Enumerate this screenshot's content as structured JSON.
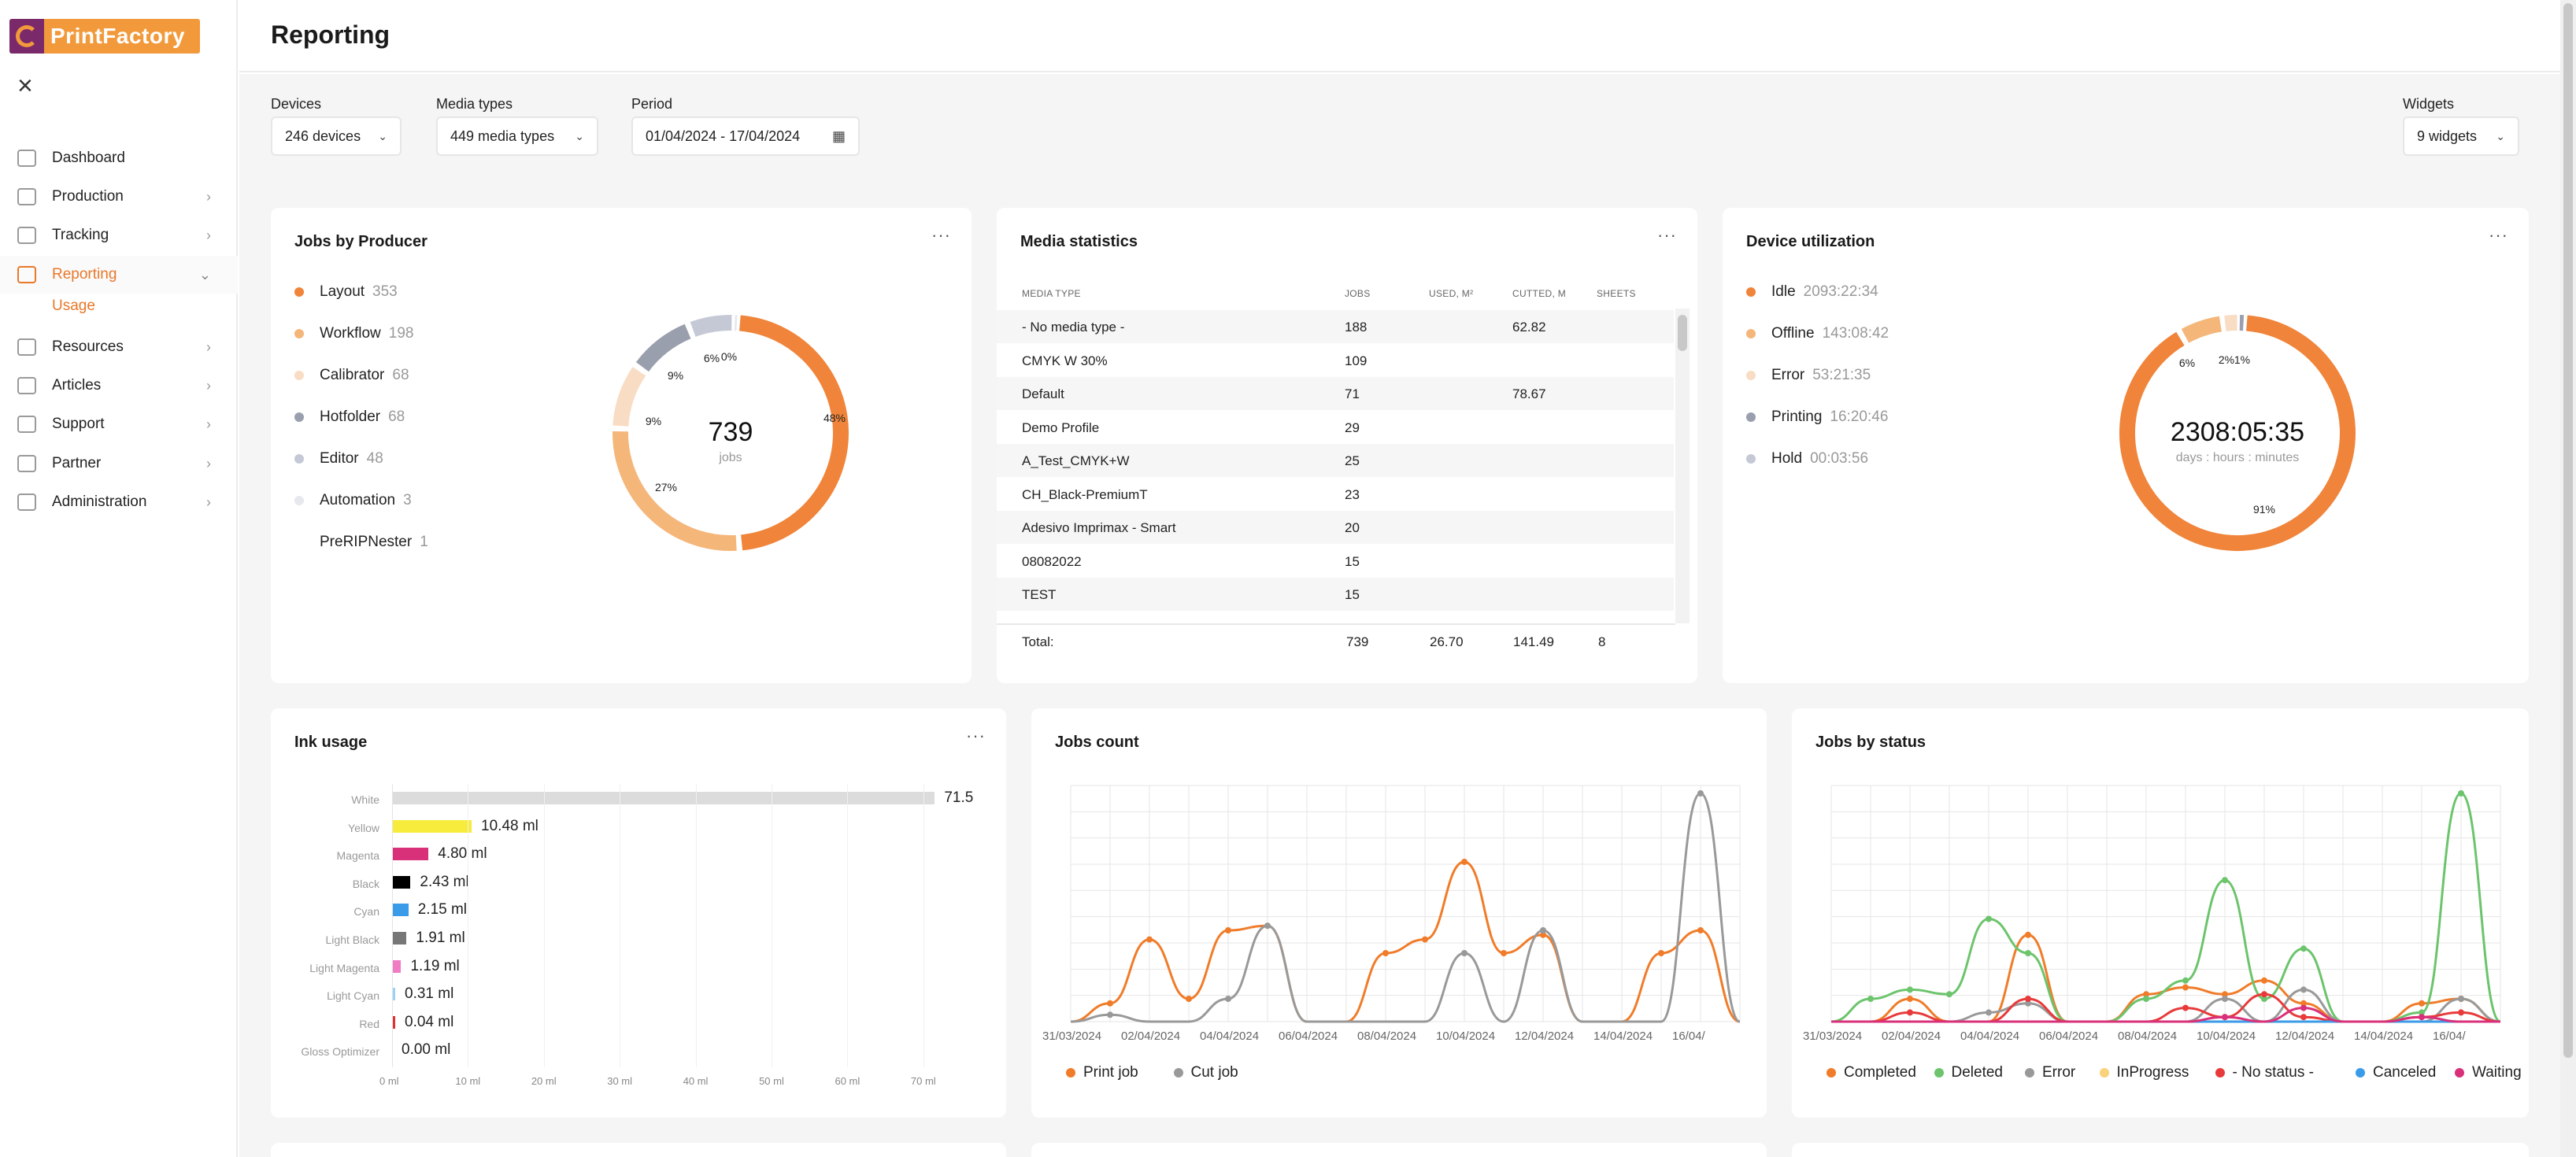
{
  "sidebar": {
    "logo_text": "PrintFactory",
    "items": [
      {
        "label": "Dashboard",
        "icon": "dashboard-icon",
        "has_chevron": false
      },
      {
        "label": "Production",
        "icon": "production-icon",
        "has_chevron": true
      },
      {
        "label": "Tracking",
        "icon": "tracking-icon",
        "has_chevron": true
      },
      {
        "label": "Reporting",
        "icon": "reporting-icon",
        "has_chevron": true,
        "active": true
      },
      {
        "label": "Resources",
        "icon": "resources-icon",
        "has_chevron": true
      },
      {
        "label": "Articles",
        "icon": "articles-icon",
        "has_chevron": true
      },
      {
        "label": "Support",
        "icon": "support-icon",
        "has_chevron": true
      },
      {
        "label": "Partner",
        "icon": "partner-icon",
        "has_chevron": true
      },
      {
        "label": "Administration",
        "icon": "administration-icon",
        "has_chevron": true
      }
    ],
    "sub_item": "Usage"
  },
  "header": {
    "title": "Reporting"
  },
  "filters": {
    "devices_label": "Devices",
    "devices_value": "246 devices",
    "media_label": "Media types",
    "media_value": "449 media types",
    "period_label": "Period",
    "period_value": "01/04/2024 - 17/04/2024",
    "widgets_label": "Widgets",
    "widgets_value": "9 widgets"
  },
  "jobs_by_producer": {
    "title": "Jobs by Producer",
    "menu": "···",
    "total": "739",
    "total_unit": "jobs",
    "items": [
      {
        "name": "Layout",
        "value": "353",
        "color": "#f0843a"
      },
      {
        "name": "Workflow",
        "value": "198",
        "color": "#f5b67a"
      },
      {
        "name": "Calibrator",
        "value": "68",
        "color": "#f9dcc4"
      },
      {
        "name": "Hotfolder",
        "value": "68",
        "color": "#9a9fae"
      },
      {
        "name": "Editor",
        "value": "48",
        "color": "#c5c9d6"
      },
      {
        "name": "Automation",
        "value": "3",
        "color": "#e6e8ee"
      },
      {
        "name": "PreRIPNester",
        "value": "1",
        "color": "#ffffff"
      }
    ],
    "pct_labels": [
      "48%",
      "27%",
      "9%",
      "9%",
      "6%",
      "0%"
    ]
  },
  "media_statistics": {
    "title": "Media statistics",
    "menu": "···",
    "columns": [
      "MEDIA TYPE",
      "JOBS",
      "USED, M²",
      "CUTTED, M",
      "SHEETS"
    ],
    "rows": [
      {
        "type": "- No media type -",
        "jobs": "188",
        "used": "",
        "cutted": "62.82",
        "sheets": ""
      },
      {
        "type": "CMYK W 30%",
        "jobs": "109",
        "used": "",
        "cutted": "",
        "sheets": ""
      },
      {
        "type": "Default",
        "jobs": "71",
        "used": "",
        "cutted": "78.67",
        "sheets": ""
      },
      {
        "type": "Demo Profile",
        "jobs": "29",
        "used": "",
        "cutted": "",
        "sheets": ""
      },
      {
        "type": "A_Test_CMYK+W",
        "jobs": "25",
        "used": "",
        "cutted": "",
        "sheets": ""
      },
      {
        "type": "CH_Black-PremiumT",
        "jobs": "23",
        "used": "",
        "cutted": "",
        "sheets": ""
      },
      {
        "type": "Adesivo Imprimax - Smart",
        "jobs": "20",
        "used": "",
        "cutted": "",
        "sheets": ""
      },
      {
        "type": "08082022",
        "jobs": "15",
        "used": "",
        "cutted": "",
        "sheets": ""
      },
      {
        "type": "TEST",
        "jobs": "15",
        "used": "",
        "cutted": "",
        "sheets": ""
      }
    ],
    "total": {
      "label": "Total:",
      "jobs": "739",
      "used": "26.70",
      "cutted": "141.49",
      "sheets": "8"
    }
  },
  "device_utilization": {
    "title": "Device utilization",
    "menu": "···",
    "total": "2308:05:35",
    "total_unit": "days : hours : minutes",
    "items": [
      {
        "name": "Idle",
        "value": "2093:22:34",
        "color": "#f0843a"
      },
      {
        "name": "Offline",
        "value": "143:08:42",
        "color": "#f5b67a"
      },
      {
        "name": "Error",
        "value": "53:21:35",
        "color": "#f9dcc4"
      },
      {
        "name": "Printing",
        "value": "16:20:46",
        "color": "#9a9fae"
      },
      {
        "name": "Hold",
        "value": "00:03:56",
        "color": "#c5c9d6"
      }
    ],
    "pct_labels": [
      "91%",
      "6%",
      "2%",
      "1%"
    ]
  },
  "ink_usage": {
    "title": "Ink usage",
    "menu": "···",
    "items": [
      {
        "name": "White",
        "value": 71.5,
        "label": "71.5",
        "color": "#dcdcdc"
      },
      {
        "name": "Yellow",
        "value": 10.48,
        "label": "10.48 ml",
        "color": "#f7ec3c"
      },
      {
        "name": "Magenta",
        "value": 4.8,
        "label": "4.80 ml",
        "color": "#d9307a"
      },
      {
        "name": "Black",
        "value": 2.43,
        "label": "2.43 ml",
        "color": "#000000"
      },
      {
        "name": "Cyan",
        "value": 2.15,
        "label": "2.15 ml",
        "color": "#3a9be8"
      },
      {
        "name": "Light Black",
        "value": 1.91,
        "label": "1.91 ml",
        "color": "#777777"
      },
      {
        "name": "Light Magenta",
        "value": 1.19,
        "label": "1.19 ml",
        "color": "#f07cc4"
      },
      {
        "name": "Light Cyan",
        "value": 0.31,
        "label": "0.31 ml",
        "color": "#9bd3f5"
      },
      {
        "name": "Red",
        "value": 0.04,
        "label": "0.04 ml",
        "color": "#e03030"
      },
      {
        "name": "Gloss Optimizer",
        "value": 0.0,
        "label": "0.00 ml",
        "color": "#cccccc"
      }
    ],
    "x_ticks": [
      "0 ml",
      "10 ml",
      "20 ml",
      "30 ml",
      "40 ml",
      "50 ml",
      "60 ml",
      "70 ml"
    ]
  },
  "jobs_count": {
    "title": "Jobs count",
    "x_ticks": [
      "31/03/2024",
      "02/04/2024",
      "04/04/2024",
      "06/04/2024",
      "08/04/2024",
      "10/04/2024",
      "12/04/2024",
      "14/04/2024",
      "16/04/"
    ],
    "series": [
      {
        "name": "Print job",
        "color": "#f07c2a"
      },
      {
        "name": "Cut job",
        "color": "#999999"
      }
    ]
  },
  "jobs_by_status": {
    "title": "Jobs by status",
    "x_ticks": [
      "31/03/2024",
      "02/04/2024",
      "04/04/2024",
      "06/04/2024",
      "08/04/2024",
      "10/04/2024",
      "12/04/2024",
      "14/04/2024",
      "16/04/"
    ],
    "series": [
      {
        "name": "Completed",
        "color": "#f07c2a"
      },
      {
        "name": "Deleted",
        "color": "#6cc46c"
      },
      {
        "name": "Error",
        "color": "#999999"
      },
      {
        "name": "InProgress",
        "color": "#f9d27a"
      },
      {
        "name": "- No status -",
        "color": "#e83a3a"
      },
      {
        "name": "Canceled",
        "color": "#3a9be8"
      },
      {
        "name": "Waiting",
        "color": "#d9307a"
      }
    ]
  },
  "chart_data": [
    {
      "type": "line",
      "title": "Jobs count",
      "x": [
        "31/03/2024",
        "01/04/2024",
        "02/04/2024",
        "03/04/2024",
        "04/04/2024",
        "05/04/2024",
        "06/04/2024",
        "07/04/2024",
        "08/04/2024",
        "09/04/2024",
        "10/04/2024",
        "11/04/2024",
        "12/04/2024",
        "13/04/2024",
        "14/04/2024",
        "15/04/2024",
        "16/04/2024",
        "17/04/2024"
      ],
      "series": [
        {
          "name": "Print job",
          "values": [
            0,
            8,
            36,
            10,
            40,
            42,
            0,
            0,
            30,
            36,
            70,
            30,
            38,
            0,
            0,
            30,
            40,
            0
          ]
        },
        {
          "name": "Cut job",
          "values": [
            0,
            3,
            0,
            0,
            10,
            42,
            0,
            0,
            0,
            0,
            30,
            0,
            40,
            0,
            0,
            0,
            100,
            0
          ]
        }
      ]
    },
    {
      "type": "line",
      "title": "Jobs by status",
      "x": [
        "31/03/2024",
        "01/04/2024",
        "02/04/2024",
        "03/04/2024",
        "04/04/2024",
        "05/04/2024",
        "06/04/2024",
        "07/04/2024",
        "08/04/2024",
        "09/04/2024",
        "10/04/2024",
        "11/04/2024",
        "12/04/2024",
        "13/04/2024",
        "14/04/2024",
        "15/04/2024",
        "16/04/2024",
        "17/04/2024"
      ],
      "series": [
        {
          "name": "Completed",
          "values": [
            0,
            0,
            10,
            0,
            0,
            38,
            0,
            0,
            12,
            15,
            12,
            18,
            8,
            0,
            0,
            8,
            10,
            0
          ]
        },
        {
          "name": "Deleted",
          "values": [
            0,
            10,
            14,
            12,
            45,
            30,
            0,
            0,
            10,
            18,
            62,
            10,
            32,
            0,
            0,
            4,
            100,
            0
          ]
        },
        {
          "name": "Error",
          "values": [
            0,
            0,
            0,
            0,
            4,
            8,
            0,
            0,
            0,
            0,
            10,
            0,
            14,
            0,
            0,
            0,
            10,
            0
          ]
        },
        {
          "name": "InProgress",
          "values": [
            0,
            0,
            0,
            0,
            0,
            0,
            0,
            0,
            0,
            0,
            0,
            0,
            0,
            0,
            0,
            0,
            0,
            0
          ]
        },
        {
          "name": "- No status -",
          "values": [
            0,
            0,
            4,
            0,
            0,
            10,
            0,
            0,
            0,
            6,
            2,
            12,
            2,
            0,
            0,
            2,
            4,
            0
          ]
        },
        {
          "name": "Canceled",
          "values": [
            0,
            0,
            0,
            0,
            0,
            0,
            0,
            0,
            0,
            0,
            0,
            0,
            0,
            0,
            0,
            0,
            0,
            0
          ]
        },
        {
          "name": "Waiting",
          "values": [
            0,
            0,
            0,
            0,
            0,
            0,
            0,
            0,
            0,
            0,
            2,
            0,
            6,
            0,
            0,
            2,
            0,
            0
          ]
        }
      ]
    }
  ]
}
